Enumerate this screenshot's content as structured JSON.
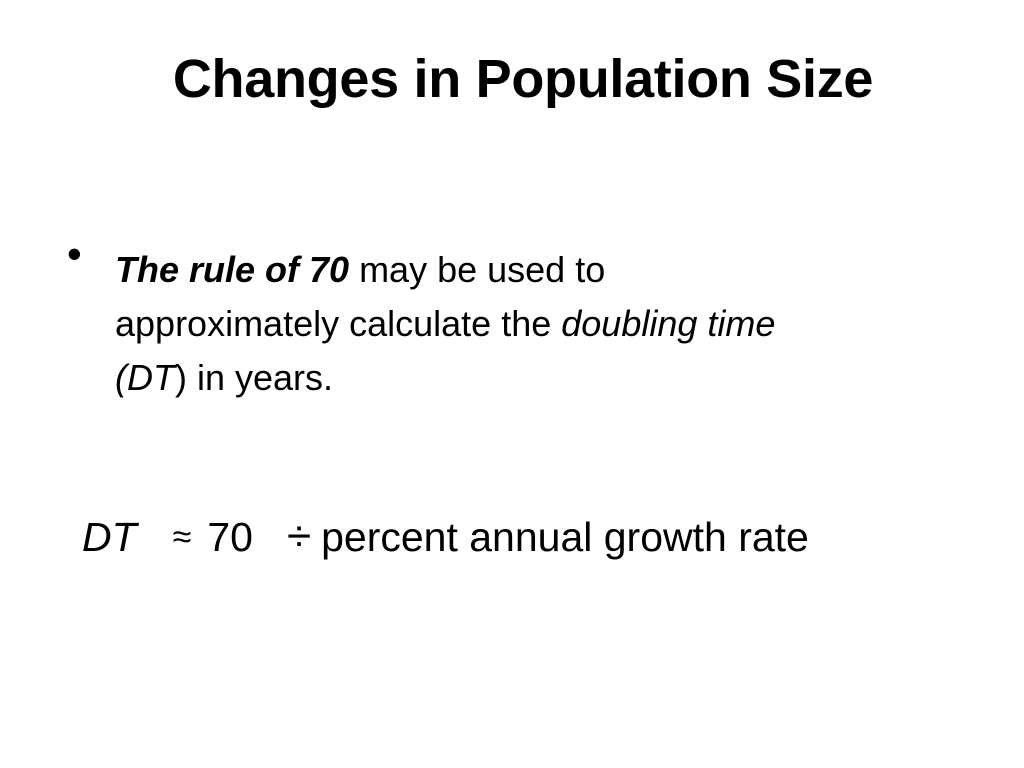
{
  "slide": {
    "title": "Changes in Population Size",
    "bullet": {
      "symbol": "•",
      "line1_bold_italic": "The rule of 70",
      "line1_rest": " may be used to",
      "line2_plain": "approximately calculate the ",
      "line2_italic": "doubling time",
      "line3_open": "(",
      "line3_italic": "DT",
      "line3_rest": ") in years."
    },
    "formula": {
      "lhs": "DT",
      "approx": "≈",
      "number": "70",
      "divide": "÷",
      "rhs": "percent annual growth rate"
    }
  }
}
